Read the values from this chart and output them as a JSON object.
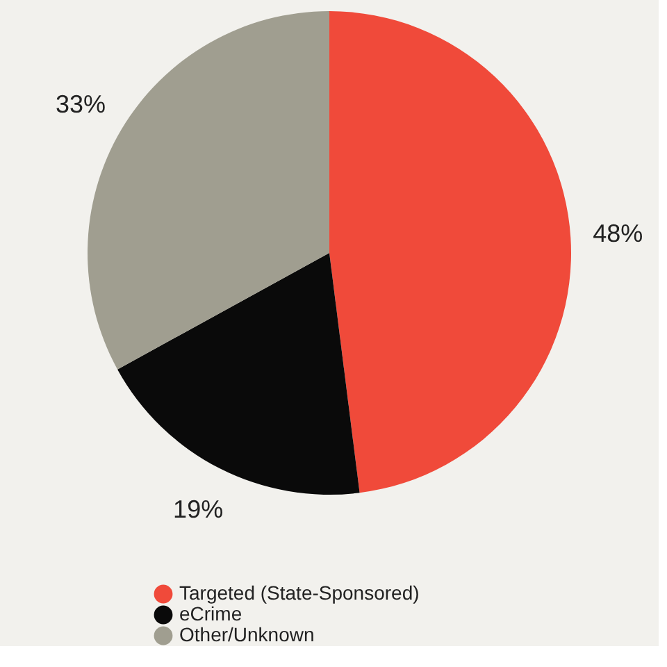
{
  "chart_data": {
    "type": "pie",
    "categories": [
      "Targeted (State-Sponsored)",
      "eCrime",
      "Other/Unknown"
    ],
    "values": [
      48,
      19,
      33
    ],
    "colors": [
      "#f04a3a",
      "#0a0a0a",
      "#a09e90"
    ],
    "value_labels": [
      "48%",
      "19%",
      "33%"
    ],
    "legend": "bottom left"
  }
}
